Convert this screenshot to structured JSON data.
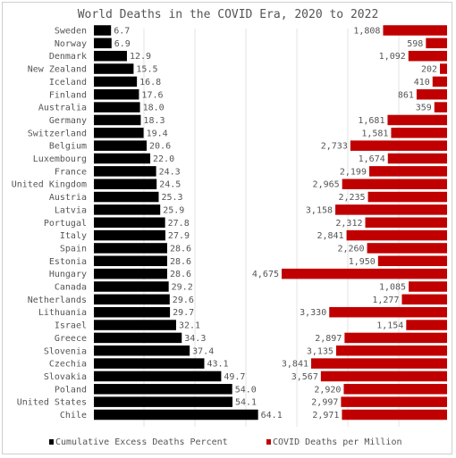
{
  "colors": {
    "left_bar": "#000000",
    "right_bar": "#c00000",
    "text": "#555555",
    "grid": "#e3e3e3"
  },
  "chart_data": {
    "type": "bar",
    "title": "World Deaths in the COVID Era, 2020 to 2022",
    "categories": [
      "Sweden",
      "Norway",
      "Denmark",
      "New Zealand",
      "Iceland",
      "Finland",
      "Australia",
      "Germany",
      "Switzerland",
      "Belgium",
      "Luxembourg",
      "France",
      "United Kingdom",
      "Austria",
      "Latvia",
      "Portugal",
      "Italy",
      "Spain",
      "Estonia",
      "Hungary",
      "Canada",
      "Netherlands",
      "Lithuania",
      "Israel",
      "Greece",
      "Slovenia",
      "Czechia",
      "Slovakia",
      "Poland",
      "United States",
      "Chile"
    ],
    "series": [
      {
        "name": "Cumulative Excess Deaths Percent",
        "values": [
          6.7,
          6.9,
          12.9,
          15.5,
          16.8,
          17.6,
          18.0,
          18.3,
          19.4,
          20.6,
          22.0,
          24.3,
          24.5,
          25.3,
          25.9,
          27.8,
          27.9,
          28.6,
          28.6,
          28.6,
          29.2,
          29.6,
          29.7,
          32.1,
          34.3,
          37.4,
          43.1,
          49.7,
          54.0,
          54.1,
          64.1
        ],
        "labels": [
          "6.7",
          "6.9",
          "12.9",
          "15.5",
          "16.8",
          "17.6",
          "18.0",
          "18.3",
          "19.4",
          "20.6",
          "22.0",
          "24.3",
          "24.5",
          "25.3",
          "25.9",
          "27.8",
          "27.9",
          "28.6",
          "28.6",
          "28.6",
          "29.2",
          "29.6",
          "29.7",
          "32.1",
          "34.3",
          "37.4",
          "43.1",
          "49.7",
          "54.0",
          "54.1",
          "64.1"
        ],
        "xlim": [
          0,
          80
        ]
      },
      {
        "name": "COVID Deaths per Million",
        "values": [
          1808,
          598,
          1092,
          202,
          410,
          861,
          359,
          1681,
          1581,
          2733,
          1674,
          2199,
          2965,
          2235,
          3158,
          2312,
          2841,
          2260,
          1950,
          4675,
          1085,
          1277,
          3330,
          1154,
          2897,
          3135,
          3841,
          3567,
          2920,
          2997,
          2971
        ],
        "labels": [
          "1,808",
          "598",
          "1,092",
          "202",
          "410",
          "861",
          "359",
          "1,681",
          "1,581",
          "2,733",
          "1,674",
          "2,199",
          "2,965",
          "2,235",
          "3,158",
          "2,312",
          "2,841",
          "2,260",
          "1,950",
          "4,675",
          "1,085",
          "1,277",
          "3,330",
          "1,154",
          "2,897",
          "3,135",
          "3,841",
          "3,567",
          "2,920",
          "2,997",
          "2,971"
        ],
        "xlim": [
          0,
          4675
        ],
        "direction": "right-to-left"
      }
    ],
    "legend": {
      "placement": "bottom",
      "items": [
        {
          "label": "Cumulative Excess Deaths Percent",
          "color": "#000000"
        },
        {
          "label": "COVID Deaths per Million",
          "color": "#c00000"
        }
      ]
    },
    "grid": "vertical lines only"
  }
}
